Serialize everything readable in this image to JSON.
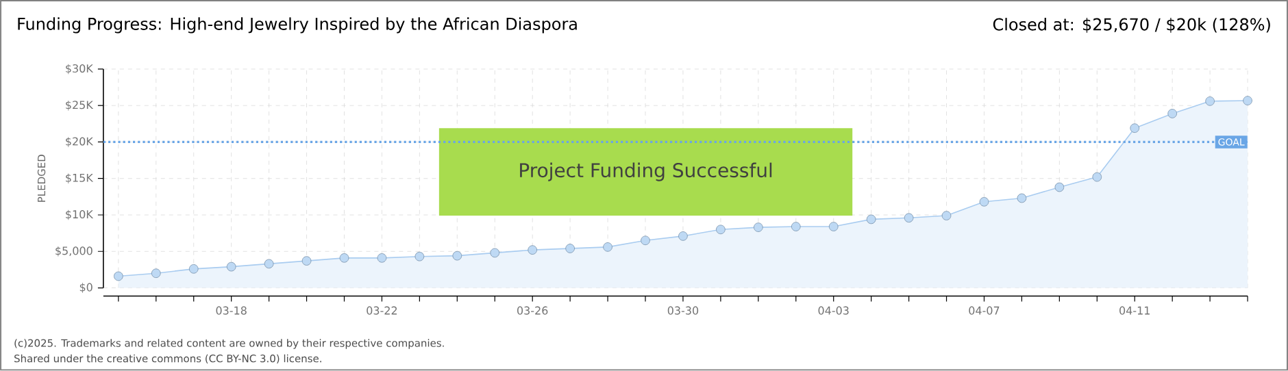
{
  "chart_data": {
    "type": "area",
    "title": "Funding Progress: High-end Jewelry Inspired by the African Diaspora",
    "subtitle": "Closed at: $25,670 / $20k (128%)",
    "ylabel": "PLEDGED",
    "categories": [
      null,
      null,
      null,
      "03-18",
      null,
      null,
      null,
      "03-22",
      null,
      null,
      null,
      "03-26",
      null,
      null,
      null,
      "03-30",
      null,
      null,
      null,
      "04-03",
      null,
      null,
      null,
      "04-07",
      null,
      null,
      null,
      "04-11",
      null,
      null,
      null
    ],
    "values": [
      1600,
      2000,
      2600,
      2900,
      3300,
      3700,
      4100,
      4100,
      4300,
      4400,
      4800,
      5200,
      5400,
      5600,
      6500,
      7100,
      8000,
      8300,
      8400,
      8400,
      9400,
      9600,
      9900,
      11800,
      12300,
      13800,
      15200,
      21900,
      23900,
      25600,
      25670
    ],
    "color": "#a9ccf0",
    "marker": "circle",
    "grid": true,
    "ylim": [
      0,
      30000
    ],
    "yticks": [
      {
        "value": 0,
        "label": "$0"
      },
      {
        "value": 5000,
        "label": "$5,000"
      },
      {
        "value": 10000,
        "label": "$10K"
      },
      {
        "value": 15000,
        "label": "$15K"
      },
      {
        "value": 20000,
        "label": "$20K"
      },
      {
        "value": 25000,
        "label": "$25K"
      },
      {
        "value": 30000,
        "label": "$30K"
      }
    ],
    "ref_lines": [
      {
        "axis": "y",
        "value": 20000,
        "label": "GOAL",
        "color": "#6aa6e6",
        "line_style": "dotted"
      }
    ],
    "annotations": [
      "Project Funding Successful",
      "(c)2025. Trademarks and related content are owned by their respective companies.",
      "Shared under the creative commons (CC BY-NC 3.0) license."
    ]
  }
}
